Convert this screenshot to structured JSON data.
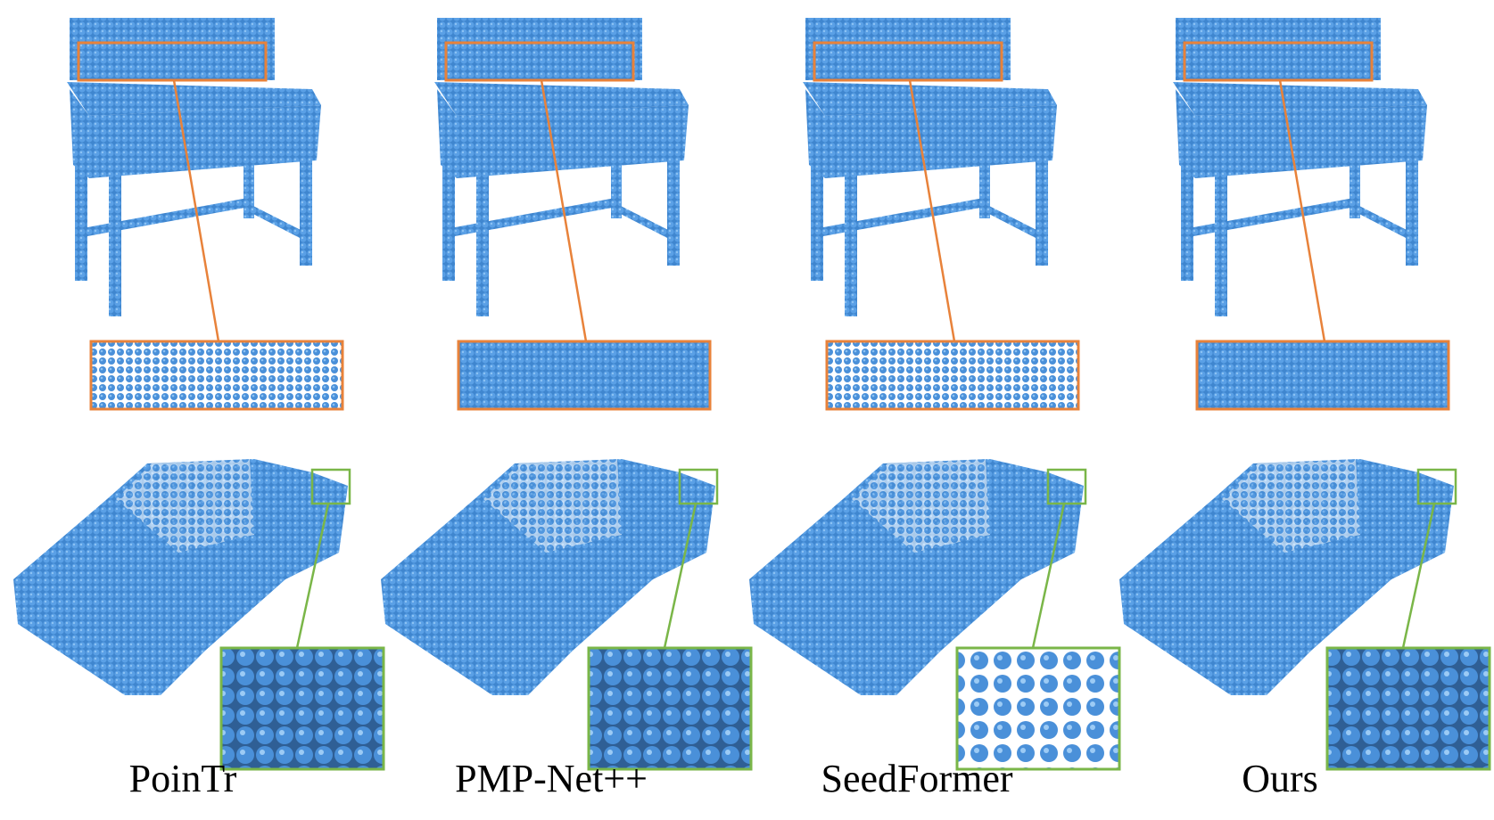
{
  "figure": {
    "methods": [
      {
        "label": "PoinTr"
      },
      {
        "label": "PMP-Net++"
      },
      {
        "label": "SeedFormer"
      },
      {
        "label": "Ours"
      }
    ],
    "point_color": "#4a90d9",
    "point_shadow": "#2d6aa8",
    "zoom_box_desk_color": "#e8823a",
    "zoom_box_car_color": "#7ab648",
    "rows": [
      "desk-point-cloud",
      "car-point-cloud"
    ]
  }
}
